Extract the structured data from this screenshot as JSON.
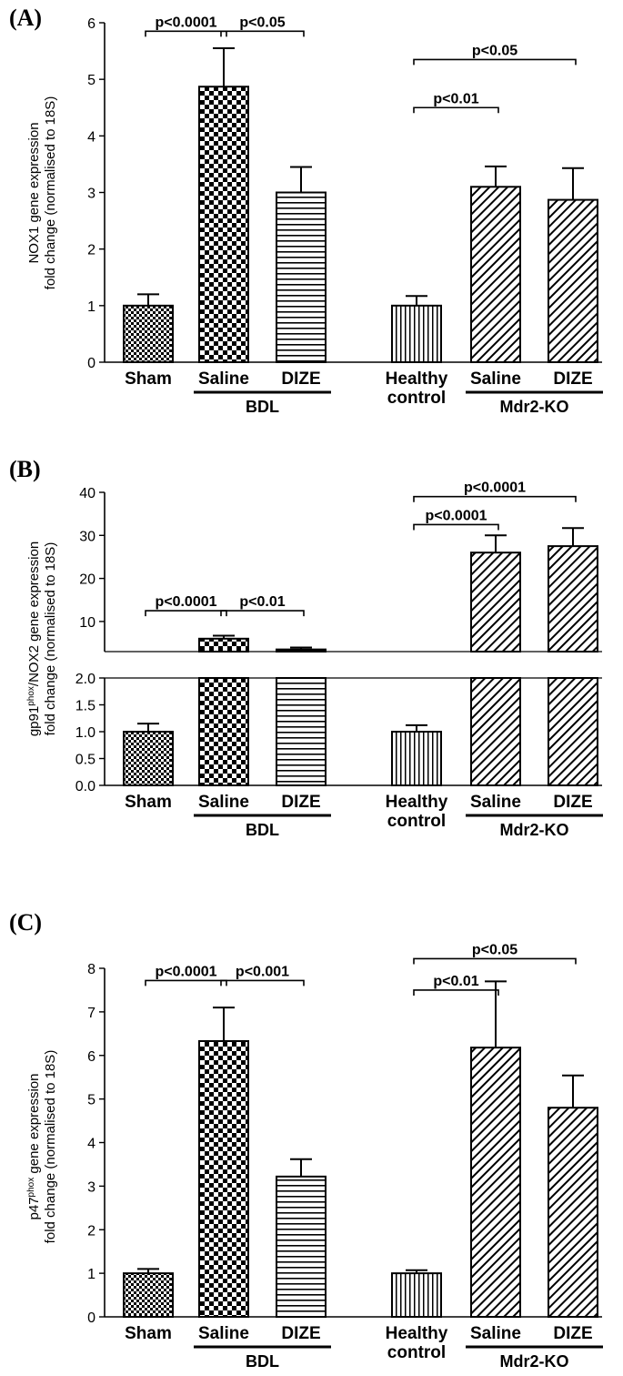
{
  "chart_data": [
    {
      "type": "bar",
      "panel_label": "(A)",
      "ylabel_lines": [
        "NOX1 gene expression",
        "fold change (normalised to 18S)"
      ],
      "ylim": [
        0,
        6
      ],
      "yticks": [
        "0",
        "1",
        "2",
        "3",
        "4",
        "5",
        "6"
      ],
      "categories": [
        "Sham",
        "Saline",
        "DIZE",
        "Healthy control",
        "Saline",
        "DIZE"
      ],
      "category_lines": [
        [
          "Sham"
        ],
        [
          "Saline"
        ],
        [
          "DIZE"
        ],
        [
          "Healthy",
          "control"
        ],
        [
          "Saline"
        ],
        [
          "DIZE"
        ]
      ],
      "values": [
        1.0,
        4.87,
        3.0,
        1.0,
        3.1,
        2.87
      ],
      "errors": [
        0.2,
        0.68,
        0.45,
        0.17,
        0.36,
        0.56
      ],
      "patterns": [
        "checker-small",
        "checker-large",
        "horizontal",
        "vertical",
        "diagonal",
        "diagonal"
      ],
      "groups": [
        {
          "label": "BDL",
          "from": 1,
          "to": 2
        },
        {
          "label": "Mdr2-KO",
          "from": 4,
          "to": 5
        }
      ],
      "significance": [
        {
          "from": 0,
          "to": 1,
          "label": "p<0.0001",
          "y": 5.85
        },
        {
          "from": 1,
          "to": 2,
          "label": "p<0.05",
          "y": 5.85
        },
        {
          "from": 3,
          "to": 4,
          "label": "p<0.01",
          "y": 4.5
        },
        {
          "from": 3,
          "to": 5,
          "label": "p<0.05",
          "y": 5.35
        }
      ]
    },
    {
      "type": "bar",
      "panel_label": "(B)",
      "ylabel_html": "gp91<tspan dy=\"-5\" font-size=\"10\">phox</tspan><tspan dy=\"5\">/NOX2 gene expression</tspan>",
      "ylabel_lines": [
        "gp91phox/NOX2 gene expression",
        "fold change (normalised to 18S)"
      ],
      "broken_axis": true,
      "lower_ylim": [
        0,
        2
      ],
      "lower_yticks": [
        "0.0",
        "0.5",
        "1.0",
        "1.5",
        "2.0"
      ],
      "upper_ylim": [
        3,
        40
      ],
      "upper_yticks": [
        "10",
        "20",
        "30",
        "40"
      ],
      "categories": [
        "Sham",
        "Saline",
        "DIZE",
        "Healthy control",
        "Saline",
        "DIZE"
      ],
      "category_lines": [
        [
          "Sham"
        ],
        [
          "Saline"
        ],
        [
          "DIZE"
        ],
        [
          "Healthy",
          "control"
        ],
        [
          "Saline"
        ],
        [
          "DIZE"
        ]
      ],
      "values": [
        1.0,
        6.0,
        3.5,
        1.0,
        26.0,
        27.5
      ],
      "errors": [
        0.15,
        0.7,
        0.45,
        0.12,
        4.0,
        4.2
      ],
      "patterns": [
        "checker-small",
        "checker-large",
        "horizontal",
        "vertical",
        "diagonal",
        "diagonal"
      ],
      "groups": [
        {
          "label": "BDL",
          "from": 1,
          "to": 2
        },
        {
          "label": "Mdr2-KO",
          "from": 4,
          "to": 5
        }
      ],
      "significance": [
        {
          "from": 0,
          "to": 1,
          "label": "p<0.0001",
          "y": 12.5
        },
        {
          "from": 1,
          "to": 2,
          "label": "p<0.01",
          "y": 12.5
        },
        {
          "from": 3,
          "to": 4,
          "label": "p<0.0001",
          "y": 32.5
        },
        {
          "from": 3,
          "to": 5,
          "label": "p<0.0001",
          "y": 39.0
        }
      ]
    },
    {
      "type": "bar",
      "panel_label": "(C)",
      "ylabel_html": "p47<tspan dy=\"-5\" font-size=\"10\">phox</tspan><tspan dy=\"5\"> gene expression</tspan>",
      "ylabel_lines": [
        "p47phox gene expression",
        "fold change (normalised to 18S)"
      ],
      "ylim": [
        0,
        8
      ],
      "yticks": [
        "0",
        "1",
        "2",
        "3",
        "4",
        "5",
        "6",
        "7",
        "8"
      ],
      "categories": [
        "Sham",
        "Saline",
        "DIZE",
        "Healthy control",
        "Saline",
        "DIZE"
      ],
      "category_lines": [
        [
          "Sham"
        ],
        [
          "Saline"
        ],
        [
          "DIZE"
        ],
        [
          "Healthy",
          "control"
        ],
        [
          "Saline"
        ],
        [
          "DIZE"
        ]
      ],
      "values": [
        1.0,
        6.33,
        3.22,
        1.0,
        6.18,
        4.8
      ],
      "errors": [
        0.1,
        0.77,
        0.4,
        0.07,
        1.52,
        0.74
      ],
      "patterns": [
        "checker-small",
        "checker-large",
        "horizontal",
        "vertical",
        "diagonal",
        "diagonal"
      ],
      "groups": [
        {
          "label": "BDL",
          "from": 1,
          "to": 2
        },
        {
          "label": "Mdr2-KO",
          "from": 4,
          "to": 5
        }
      ],
      "significance": [
        {
          "from": 0,
          "to": 1,
          "label": "p<0.0001",
          "y": 7.72
        },
        {
          "from": 1,
          "to": 2,
          "label": "p<0.001",
          "y": 7.72
        },
        {
          "from": 3,
          "to": 4,
          "label": "p<0.01",
          "y": 7.5
        },
        {
          "from": 3,
          "to": 5,
          "label": "p<0.05",
          "y": 8.22
        }
      ]
    }
  ]
}
